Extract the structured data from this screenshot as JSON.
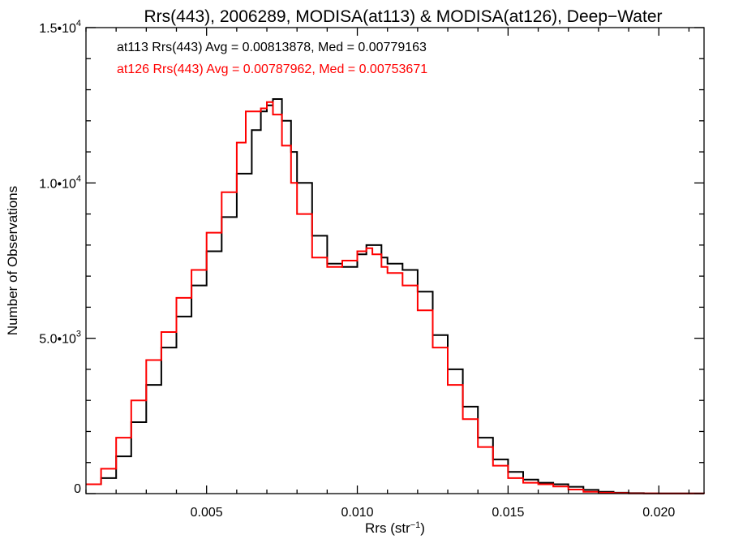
{
  "chart_data": {
    "type": "line",
    "title": "Rrs(443), 2006289, MODISA(at113) & MODISA(at126), Deep−Water",
    "xlabel_base": "Rrs (str",
    "xlabel_sup": "−1",
    "xlabel_close": ")",
    "ylabel": "Number of Observations",
    "xlim": [
      0.001,
      0.0215
    ],
    "ylim": [
      0,
      15000
    ],
    "x_ticks": [
      {
        "value": 0.005,
        "label": "0.005"
      },
      {
        "value": 0.01,
        "label": "0.010"
      },
      {
        "value": 0.015,
        "label": "0.015"
      },
      {
        "value": 0.02,
        "label": "0.020"
      }
    ],
    "y_ticks": [
      {
        "value": 0,
        "label": "0",
        "exp": ""
      },
      {
        "value": 5000,
        "label": "5.0•10",
        "exp": "3"
      },
      {
        "value": 10000,
        "label": "1.0•10",
        "exp": "4"
      },
      {
        "value": 15000,
        "label": "1.5•10",
        "exp": "4"
      }
    ],
    "annotations": [
      {
        "text": "at113 Rrs(443) Avg = 0.00813878, Med = 0.00779163",
        "color": "#000000"
      },
      {
        "text": "at126 Rrs(443) Avg = 0.00787962, Med = 0.00753671",
        "color": "#ff0000"
      }
    ],
    "series": [
      {
        "color": "#000000",
        "x": [
          0.001,
          0.0015,
          0.002,
          0.0025,
          0.003,
          0.0035,
          0.004,
          0.0045,
          0.005,
          0.0055,
          0.006,
          0.0065,
          0.0068,
          0.007,
          0.0072,
          0.0075,
          0.0078,
          0.008,
          0.0085,
          0.009,
          0.0095,
          0.01,
          0.0103,
          0.0105,
          0.0108,
          0.011,
          0.0115,
          0.012,
          0.0125,
          0.013,
          0.0135,
          0.014,
          0.0145,
          0.015,
          0.0155,
          0.016,
          0.0165,
          0.017,
          0.0175,
          0.018,
          0.0185,
          0.019,
          0.0195,
          0.02,
          0.0215
        ],
        "y": [
          300,
          500,
          1200,
          2300,
          3500,
          4700,
          5700,
          6700,
          7800,
          8900,
          10300,
          11700,
          12300,
          12500,
          12700,
          12000,
          11000,
          10000,
          8300,
          7400,
          7300,
          7700,
          8000,
          8000,
          7600,
          7400,
          7200,
          6500,
          5100,
          4000,
          2800,
          1800,
          1100,
          700,
          450,
          350,
          300,
          220,
          120,
          60,
          30,
          15,
          8,
          5,
          0
        ]
      },
      {
        "color": "#ff0000",
        "x": [
          0.001,
          0.0015,
          0.002,
          0.0025,
          0.003,
          0.0035,
          0.004,
          0.0045,
          0.005,
          0.0055,
          0.006,
          0.0063,
          0.0066,
          0.0068,
          0.007,
          0.0072,
          0.0075,
          0.0078,
          0.008,
          0.0085,
          0.009,
          0.0095,
          0.01,
          0.0103,
          0.0105,
          0.0108,
          0.011,
          0.0115,
          0.012,
          0.0125,
          0.013,
          0.0135,
          0.014,
          0.0145,
          0.015,
          0.0155,
          0.016,
          0.0165,
          0.017,
          0.0175,
          0.018,
          0.0185,
          0.019,
          0.0195,
          0.02,
          0.0215
        ],
        "y": [
          300,
          800,
          1800,
          3000,
          4300,
          5200,
          6300,
          7200,
          8400,
          9700,
          11300,
          12300,
          12300,
          12400,
          12600,
          12200,
          11200,
          10000,
          9000,
          7600,
          7300,
          7500,
          7800,
          7900,
          7700,
          7300,
          7100,
          6700,
          5900,
          4700,
          3500,
          2400,
          1500,
          900,
          500,
          350,
          300,
          230,
          130,
          60,
          30,
          15,
          8,
          5,
          3,
          0
        ]
      }
    ]
  }
}
